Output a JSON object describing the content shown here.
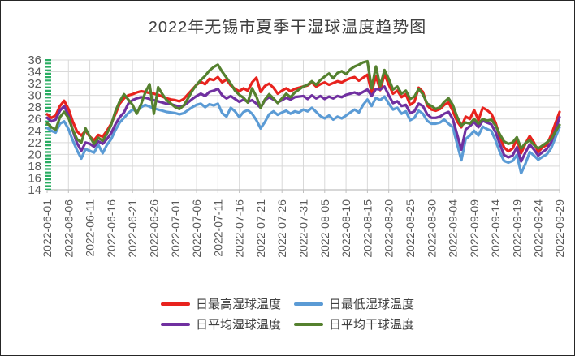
{
  "window": {
    "title": "2022年无锡市夏季干湿球温度趋势图"
  },
  "chart_data": {
    "type": "line",
    "title": "2022年无锡市夏季干湿球温度趋势图",
    "grid": true,
    "legend_position": "bottom",
    "ylim": [
      14,
      36
    ],
    "y_tick_step": 2,
    "y_tick_labels": [
      "36",
      "34",
      "32",
      "30",
      "28",
      "26",
      "24",
      "22",
      "20",
      "18",
      "16",
      "14"
    ],
    "x_tick_every_days": 5,
    "x_tick_labels": [
      "2022-06-01",
      "2022-06-06",
      "2022-06-11",
      "2022-06-16",
      "2022-06-21",
      "2022-06-26",
      "2022-07-01",
      "2022-07-06",
      "2022-07-11",
      "2022-07-16",
      "2022-07-21",
      "2022-07-26",
      "2022-07-31",
      "2022-08-05",
      "2022-08-10",
      "2022-08-15",
      "2022-08-20",
      "2022-08-25",
      "2022-08-30",
      "2022-09-04",
      "2022-09-09",
      "2022-09-14",
      "2022-09-19",
      "2022-09-24",
      "2022-09-29"
    ],
    "colors": {
      "grid": "#D9D9D9",
      "axis_line": "#BFBFBF",
      "axis_labels": "#595959",
      "y_axis_tick_strip": "#29AD62",
      "title": "#404040"
    },
    "legend_rows": [
      [
        "max-wet-bulb",
        "min-wet-bulb"
      ],
      [
        "avg-wet-bulb",
        "avg-dry-bulb"
      ]
    ],
    "series": [
      {
        "key": "max-wet-bulb",
        "name": "日最高湿球温度",
        "color": "#E8231E",
        "values": [
          26.8,
          26.2,
          26.6,
          28.2,
          29.1,
          27.7,
          25.6,
          23.9,
          23.2,
          24.0,
          23.0,
          22.4,
          23.3,
          23.0,
          24.0,
          25.2,
          26.8,
          28.6,
          29.5,
          30.0,
          30.2,
          30.5,
          30.7,
          30.6,
          30.4,
          30.3,
          30.1,
          29.8,
          29.5,
          29.3,
          29.2,
          29.0,
          29.4,
          30.2,
          31.0,
          31.8,
          32.3,
          31.9,
          32.8,
          32.6,
          33.1,
          32.2,
          32.7,
          31.7,
          31.1,
          30.7,
          31.2,
          30.8,
          32.2,
          33.0,
          30.6,
          31.6,
          32.0,
          31.3,
          30.3,
          30.8,
          31.2,
          30.7,
          31.1,
          31.3,
          31.5,
          31.7,
          32.2,
          31.5,
          31.9,
          32.2,
          31.8,
          32.1,
          32.4,
          32.2,
          32.6,
          32.9,
          33.1,
          32.5,
          33.0,
          33.5,
          30.5,
          33.3,
          30.9,
          33.6,
          31.8,
          30.3,
          30.8,
          29.7,
          30.2,
          28.4,
          28.9,
          31.3,
          30.6,
          28.3,
          27.6,
          27.4,
          27.7,
          28.4,
          28.8,
          27.4,
          25.6,
          24.6,
          26.4,
          26.0,
          27.5,
          25.8,
          27.9,
          27.5,
          26.9,
          25.4,
          23.0,
          21.2,
          20.5,
          21.0,
          22.6,
          20.2,
          21.8,
          23.1,
          22.0,
          20.4,
          21.2,
          21.6,
          23.2,
          25.2,
          27.2
        ]
      },
      {
        "key": "min-wet-bulb",
        "name": "日最低湿球温度",
        "color": "#5B9BD5",
        "values": [
          24.5,
          24.0,
          23.7,
          25.2,
          25.6,
          24.3,
          22.4,
          20.7,
          19.3,
          20.9,
          20.6,
          20.3,
          21.6,
          20.2,
          21.6,
          22.6,
          24.1,
          25.4,
          26.2,
          27.0,
          27.6,
          27.3,
          28.0,
          28.4,
          28.1,
          27.8,
          27.6,
          27.4,
          27.2,
          27.1,
          27.0,
          26.8,
          27.0,
          27.5,
          28.0,
          28.4,
          28.6,
          28.0,
          28.5,
          28.3,
          28.6,
          27.0,
          26.4,
          27.9,
          27.3,
          26.3,
          27.2,
          27.5,
          26.9,
          25.8,
          24.4,
          25.5,
          26.8,
          27.3,
          26.7,
          27.1,
          27.4,
          26.9,
          27.3,
          27.1,
          27.6,
          27.3,
          27.9,
          27.2,
          26.5,
          26.1,
          26.6,
          25.9,
          26.4,
          26.1,
          26.6,
          27.1,
          27.6,
          27.1,
          28.4,
          29.3,
          28.2,
          29.6,
          29.2,
          29.8,
          28.6,
          27.6,
          27.9,
          26.9,
          27.3,
          25.8,
          26.2,
          27.4,
          26.9,
          25.7,
          25.2,
          25.2,
          25.4,
          25.9,
          25.2,
          24.6,
          21.8,
          19.0,
          22.6,
          23.2,
          24.0,
          23.2,
          24.7,
          24.3,
          24.0,
          22.4,
          20.4,
          18.9,
          18.6,
          18.9,
          19.9,
          16.8,
          18.4,
          20.4,
          19.8,
          19.1,
          19.6,
          20.0,
          21.0,
          22.8,
          24.6
        ]
      },
      {
        "key": "avg-wet-bulb",
        "name": "日平均湿球温度",
        "color": "#7030A0",
        "values": [
          26.2,
          25.6,
          25.9,
          27.4,
          28.2,
          26.6,
          24.1,
          21.9,
          20.6,
          22.0,
          21.8,
          21.3,
          22.2,
          21.8,
          22.6,
          23.6,
          25.1,
          26.3,
          27.1,
          28.6,
          29.2,
          29.5,
          29.7,
          29.6,
          29.4,
          29.2,
          29.0,
          28.8,
          28.6,
          28.5,
          28.3,
          28.1,
          28.3,
          28.8,
          29.4,
          29.9,
          30.3,
          29.9,
          30.6,
          30.8,
          31.1,
          30.0,
          29.5,
          29.9,
          29.4,
          28.9,
          29.3,
          28.9,
          29.2,
          28.6,
          27.9,
          29.2,
          29.7,
          29.3,
          28.8,
          29.2,
          29.6,
          29.3,
          29.7,
          29.8,
          29.9,
          29.4,
          30.0,
          29.5,
          29.9,
          29.4,
          29.8,
          29.5,
          29.9,
          29.7,
          30.1,
          30.3,
          30.5,
          30.2,
          30.6,
          31.0,
          29.9,
          31.1,
          31.0,
          31.5,
          30.0,
          28.7,
          29.0,
          28.2,
          28.4,
          27.0,
          27.3,
          28.6,
          28.2,
          26.8,
          26.2,
          26.2,
          26.4,
          26.9,
          27.2,
          26.0,
          23.4,
          20.8,
          24.2,
          24.8,
          25.5,
          24.6,
          25.7,
          25.4,
          25.1,
          23.8,
          21.8,
          19.9,
          19.5,
          19.8,
          21.2,
          18.8,
          20.3,
          21.7,
          20.8,
          19.8,
          20.4,
          20.9,
          22.0,
          24.0,
          26.3
        ]
      },
      {
        "key": "avg-dry-bulb",
        "name": "日平均干球温度",
        "color": "#55812F",
        "values": [
          25.3,
          24.6,
          24.2,
          26.3,
          27.2,
          26.2,
          24.2,
          22.6,
          22.0,
          24.4,
          23.0,
          21.8,
          22.8,
          22.3,
          23.5,
          25.0,
          27.3,
          29.0,
          30.2,
          29.3,
          28.4,
          26.9,
          28.5,
          30.5,
          31.9,
          26.9,
          31.4,
          30.2,
          29.2,
          28.6,
          28.0,
          27.7,
          28.3,
          29.5,
          30.8,
          31.8,
          32.6,
          33.3,
          34.2,
          34.8,
          35.2,
          34.0,
          33.0,
          32.0,
          30.8,
          30.1,
          29.6,
          28.8,
          31.2,
          29.8,
          27.9,
          29.3,
          30.2,
          29.5,
          28.7,
          29.5,
          30.3,
          29.7,
          30.5,
          31.0,
          31.5,
          31.8,
          32.4,
          31.8,
          32.6,
          33.2,
          33.7,
          32.9,
          33.8,
          34.1,
          33.6,
          34.4,
          34.9,
          35.2,
          35.6,
          35.8,
          31.2,
          34.9,
          31.6,
          34.3,
          32.8,
          31.0,
          31.5,
          30.3,
          30.8,
          29.4,
          29.8,
          31.1,
          30.2,
          28.6,
          28.2,
          27.7,
          28.0,
          28.9,
          29.5,
          28.4,
          26.4,
          24.9,
          25.4,
          25.2,
          26.0,
          25.2,
          26.0,
          25.7,
          25.9,
          24.9,
          23.4,
          22.2,
          21.8,
          22.0,
          22.9,
          21.0,
          21.9,
          22.4,
          21.6,
          21.0,
          21.5,
          22.0,
          22.6,
          23.8,
          25.0
        ]
      }
    ]
  }
}
